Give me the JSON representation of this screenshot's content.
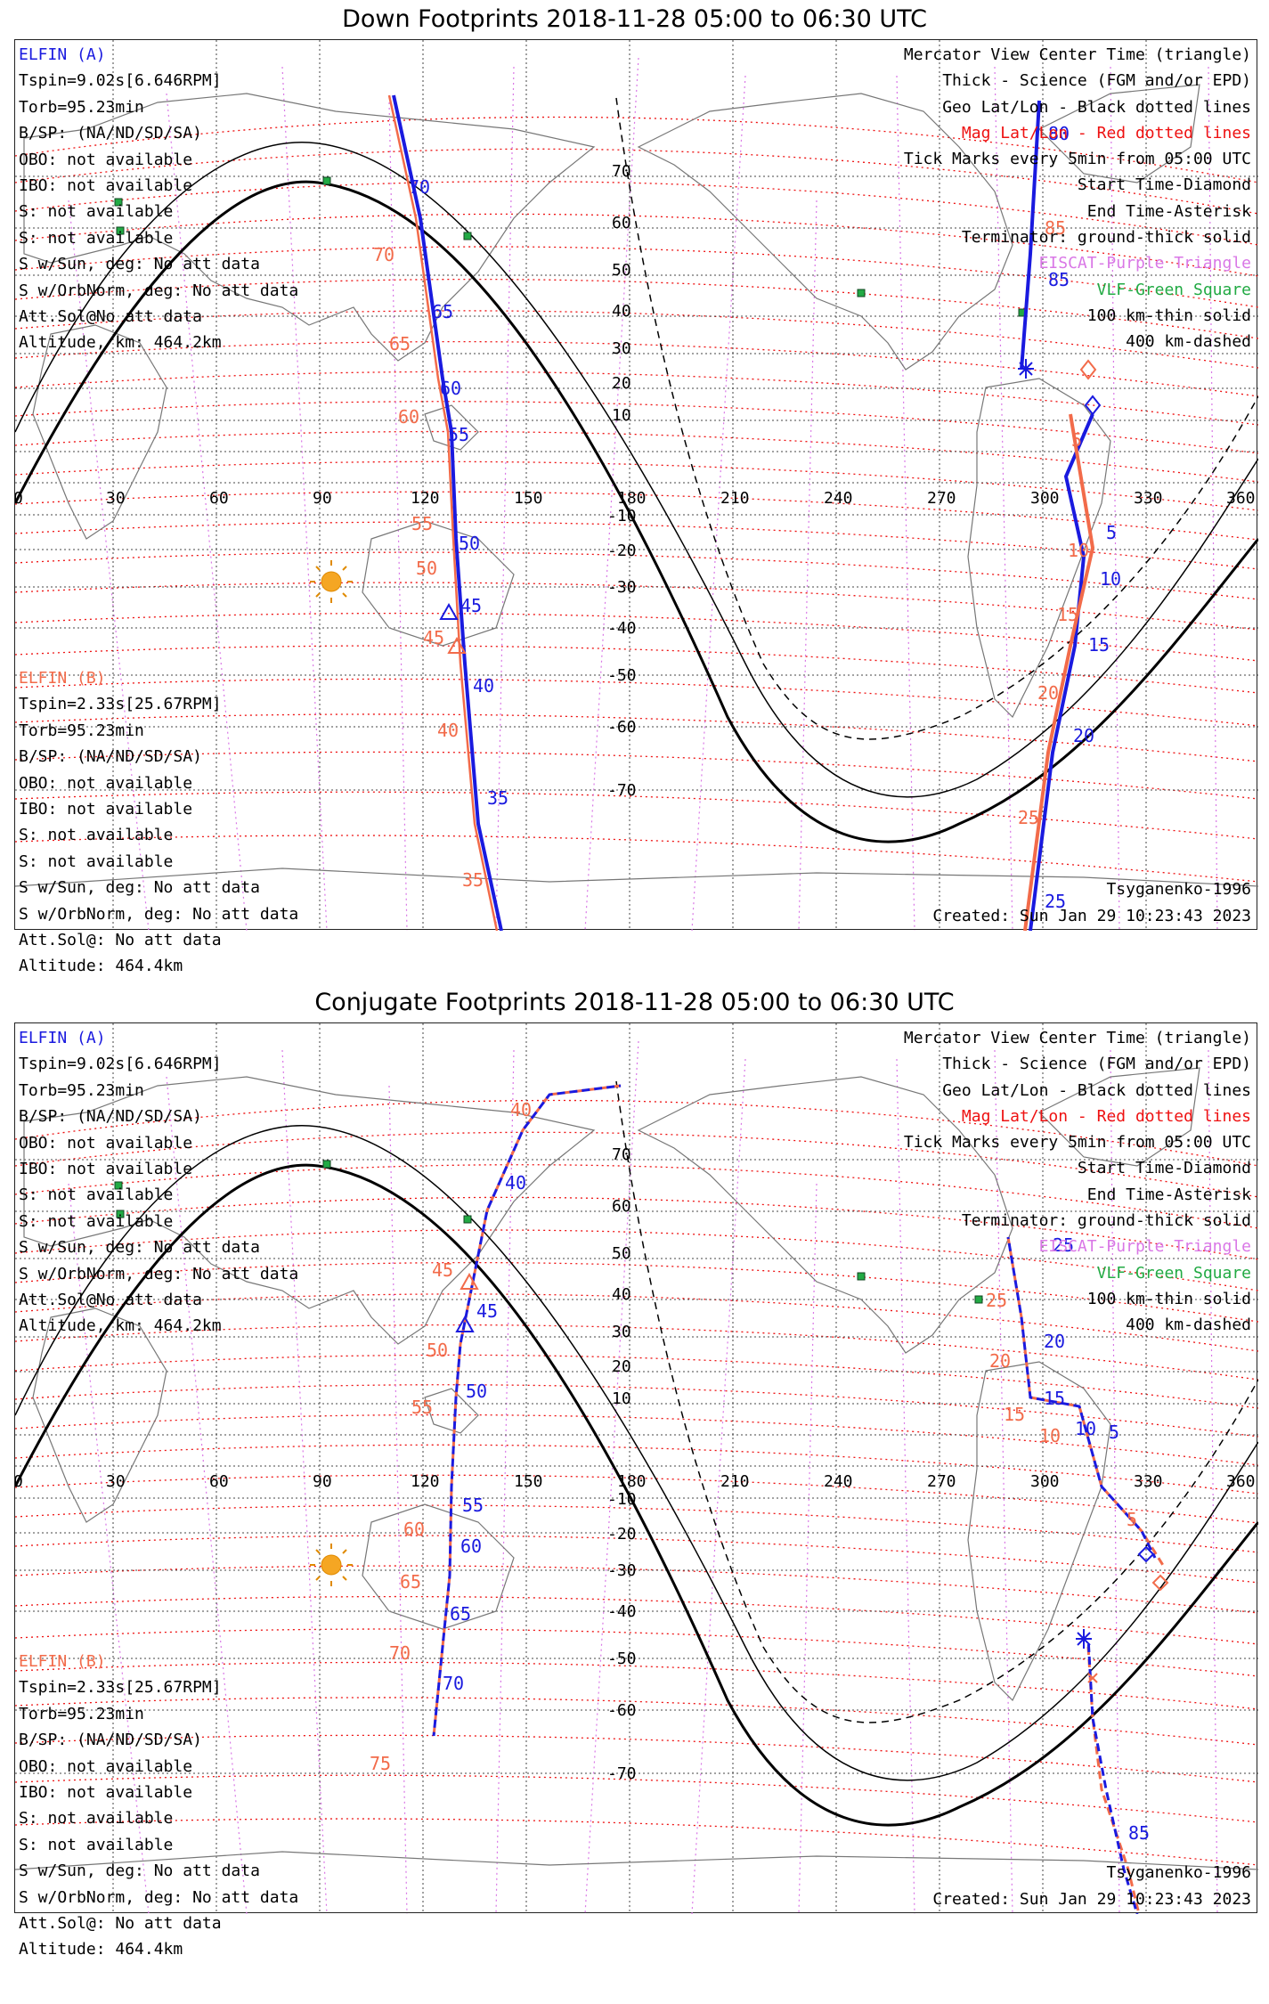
{
  "panels": [
    {
      "title": "Down Footprints 2018-11-28 05:00 to 06:30 UTC",
      "sat_a": {
        "name": "ELFIN (A)",
        "lines": [
          "Tspin=9.02s[6.646RPM]",
          "Torb=95.23min",
          "B/SP: (NA/ND/SD/SA)",
          "OBO: not available",
          "IBO: not available",
          "S: not available",
          "S: not available",
          "S w/Sun, deg: No att data",
          "S w/OrbNorm, deg: No att data",
          "Att.Sol@No att data",
          "Altitude, km: 464.2km"
        ]
      },
      "sat_b": {
        "name": "ELFIN (B)",
        "lines": [
          "Tspin=2.33s[25.67RPM]",
          "Torb=95.23min",
          "B/SP: (NA/ND/SD/SA)",
          "OBO: not available",
          "IBO: not available",
          "S: not available",
          "S: not available",
          "S w/Sun, deg: No att data",
          "S w/OrbNorm, deg: No att data",
          "Att.Sol@: No att data",
          "Altitude: 464.4km"
        ]
      },
      "legend": [
        "Mercator View Center Time (triangle)",
        "Thick - Science (FGM and/or EPD)",
        "Geo Lat/Lon - Black dotted lines",
        "Mag Lat/Lon - Red dotted lines",
        "Tick Marks every 5min from 05:00 UTC",
        "Start Time-Diamond",
        "End Time-Asterisk",
        "Terminator: ground-thick solid",
        "EISCAT-Purple Triangle",
        "VLF-Green Square",
        "100 km-thin solid",
        "400 km-dashed"
      ],
      "model": "Tsyganenko-1996",
      "created": "Created: Sun Jan 29 10:23:43 2023",
      "lon_ticks": [
        "0",
        "30",
        "60",
        "90",
        "120",
        "150",
        "180",
        "210",
        "240",
        "270",
        "300",
        "330",
        "360"
      ],
      "lat_ticks": [
        "70",
        "60",
        "50",
        "40",
        "30",
        "20",
        "10",
        "-10",
        "-20",
        "-30",
        "-40",
        "-50",
        "-60",
        "-70"
      ],
      "track_labels_a": [
        "70",
        "65",
        "60",
        "55",
        "50",
        "45",
        "40",
        "35",
        "80",
        "85",
        "5",
        "10",
        "15",
        "20",
        "25"
      ],
      "track_labels_b": [
        "70",
        "65",
        "60",
        "55",
        "50",
        "45",
        "40",
        "35",
        "85",
        "5",
        "10",
        "15",
        "20",
        "25"
      ]
    },
    {
      "title": "Conjugate Footprints 2018-11-28 05:00 to 06:30 UTC",
      "sat_a": {
        "name": "ELFIN (A)",
        "lines": [
          "Tspin=9.02s[6.646RPM]",
          "Torb=95.23min",
          "B/SP: (NA/ND/SD/SA)",
          "OBO: not available",
          "IBO: not available",
          "S: not available",
          "S: not available",
          "S w/Sun, deg: No att data",
          "S w/OrbNorm, deg: No att data",
          "Att.Sol@No att data",
          "Altitude, km: 464.2km"
        ]
      },
      "sat_b": {
        "name": "ELFIN (B)",
        "lines": [
          "Tspin=2.33s[25.67RPM]",
          "Torb=95.23min",
          "B/SP: (NA/ND/SD/SA)",
          "OBO: not available",
          "IBO: not available",
          "S: not available",
          "S: not available",
          "S w/Sun, deg: No att data",
          "S w/OrbNorm, deg: No att data",
          "Att.Sol@: No att data",
          "Altitude: 464.4km"
        ]
      },
      "legend": [
        "Mercator View Center Time (triangle)",
        "Thick - Science (FGM and/or EPD)",
        "Geo Lat/Lon - Black dotted lines",
        "Mag Lat/Lon - Red dotted lines",
        "Tick Marks every 5min from 05:00 UTC",
        "Start Time-Diamond",
        "End Time-Asterisk",
        "Terminator: ground-thick solid",
        "EISCAT-Purple Triangle",
        "VLF-Green Square",
        "100 km-thin solid",
        "400 km-dashed"
      ],
      "model": "Tsyganenko-1996",
      "created": "Created: Sun Jan 29 10:23:43 2023",
      "lon_ticks": [
        "0",
        "30",
        "60",
        "90",
        "120",
        "150",
        "180",
        "210",
        "240",
        "270",
        "300",
        "330",
        "360"
      ],
      "lat_ticks": [
        "70",
        "60",
        "50",
        "40",
        "30",
        "20",
        "10",
        "-10",
        "-20",
        "-30",
        "-40",
        "-50",
        "-60",
        "-70"
      ],
      "track_labels_a": [
        "40",
        "45",
        "50",
        "55",
        "60",
        "65",
        "70",
        "25",
        "20",
        "15",
        "10",
        "5",
        "85"
      ],
      "track_labels_b": [
        "40",
        "45",
        "50",
        "55",
        "60",
        "65",
        "70",
        "75",
        "25",
        "20",
        "15",
        "10",
        "5"
      ]
    }
  ],
  "colors": {
    "sat_a": "#1a1adf",
    "sat_b": "#f26b4a",
    "mag_grid": "#ee1111",
    "geo_grid": "#333333",
    "eiscat": "#d977e6",
    "vlf": "#22aa44",
    "sun": "#f5a623"
  }
}
